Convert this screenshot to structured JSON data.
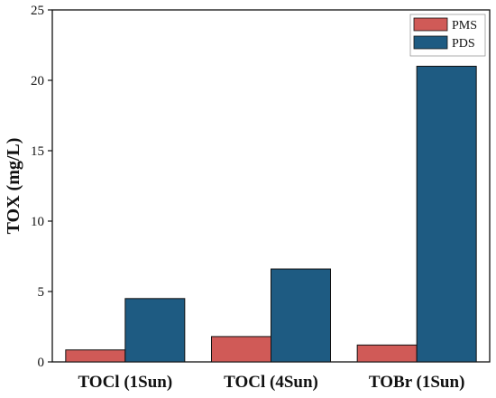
{
  "chart_data": {
    "type": "bar",
    "title": "",
    "xlabel": "",
    "ylabel": "TOX (mg/L)",
    "categories": [
      "TOCl (1Sun)",
      "TOCl (4Sun)",
      "TOBr (1Sun)"
    ],
    "series": [
      {
        "name": "PMS",
        "color": "#d05a57",
        "values": [
          0.85,
          1.8,
          1.2
        ]
      },
      {
        "name": "PDS",
        "color": "#1e5b82",
        "values": [
          4.5,
          6.6,
          21.0
        ]
      }
    ],
    "ylim": [
      0,
      25
    ],
    "yticks": [
      "0",
      "5",
      "10",
      "15",
      "20",
      "25"
    ],
    "grid": false,
    "legend_position": "top-right"
  }
}
